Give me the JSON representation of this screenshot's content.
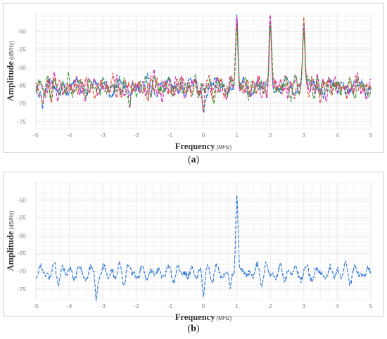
{
  "chart_data": [
    {
      "type": "line",
      "panel_label": "a",
      "caption_open": "(",
      "caption_close": ")",
      "xlabel": "Frequency",
      "xlabel_unit": "(MHz)",
      "ylabel": "Amplitude",
      "ylabel_unit": "(dB/Hz)",
      "xlim": [
        -5,
        5
      ],
      "ylim": [
        -77,
        -45
      ],
      "xticks": [
        -5,
        -4,
        -3,
        -2,
        -1,
        0,
        1,
        2,
        3,
        4,
        5
      ],
      "yticks": [
        -50,
        -55,
        -60,
        -65,
        -70,
        -75
      ],
      "xtick_labels": [
        "-5",
        "-4",
        "-3",
        "-2",
        "-1",
        "0",
        "1",
        "2",
        "3",
        "4",
        "5"
      ],
      "ytick_labels": [
        "-50",
        "-55",
        "-60",
        "-65",
        "-70",
        "-75"
      ],
      "grid": true,
      "line_style": "dashed",
      "noise_floor": -65.5,
      "peaks": [
        {
          "x": 1,
          "y": -47.5
        },
        {
          "x": 2,
          "y": -47.5
        },
        {
          "x": 3,
          "y": -47.5
        }
      ],
      "dips": [
        {
          "x": 0,
          "y": -74.5
        },
        {
          "x": -2.2,
          "y": -73.5
        },
        {
          "x": -4.8,
          "y": -72
        }
      ],
      "series": [
        {
          "color": "#1f6fd4"
        },
        {
          "color": "#d22ab5"
        },
        {
          "color": "#e04a3a"
        },
        {
          "color": "#3b9a3b"
        }
      ]
    },
    {
      "type": "line",
      "panel_label": "b",
      "caption_open": "(",
      "caption_close": ")",
      "xlabel": "Frequency",
      "xlabel_unit": "(MHz)",
      "ylabel": "Amplitude",
      "ylabel_unit": "(dB/Hz)",
      "xlim": [
        -5,
        5
      ],
      "ylim": [
        -78,
        -45
      ],
      "xticks": [
        -5,
        -4,
        -3,
        -2,
        -1,
        0,
        1,
        2,
        3,
        4,
        5
      ],
      "yticks": [
        -50,
        -55,
        -60,
        -65,
        -70,
        -75
      ],
      "xtick_labels": [
        "-5",
        "-4",
        "-3",
        "-2",
        "-1",
        "0",
        "1",
        "2",
        "3",
        "4",
        "5"
      ],
      "ytick_labels": [
        "-50",
        "-55",
        "-60",
        "-65",
        "-70",
        "-75"
      ],
      "grid": true,
      "line_style": "dashed",
      "noise_floor": -70.5,
      "peaks": [
        {
          "x": 1,
          "y": -48
        }
      ],
      "dips": [
        {
          "x": -3.2,
          "y": -77.5
        },
        {
          "x": 0.8,
          "y": -77
        },
        {
          "x": 0,
          "y": -76
        }
      ],
      "series": [
        {
          "color": "#2e78d6"
        }
      ]
    }
  ]
}
